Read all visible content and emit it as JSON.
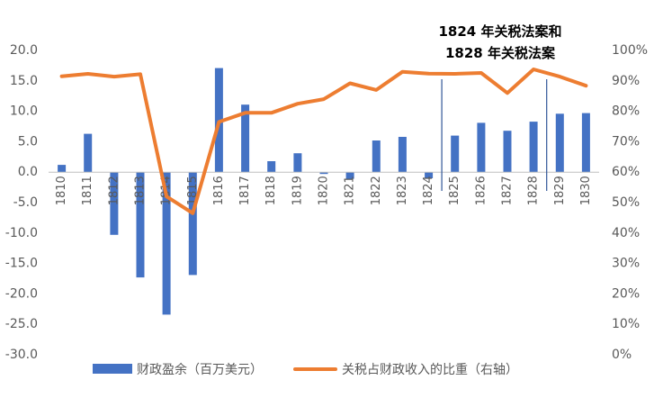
{
  "chart_data": {
    "type": "bar+line",
    "categories": [
      "1810",
      "1811",
      "1812",
      "1813",
      "1814",
      "1815",
      "1816",
      "1817",
      "1818",
      "1819",
      "1820",
      "1821",
      "1822",
      "1823",
      "1824",
      "1825",
      "1826",
      "1827",
      "1828",
      "1829",
      "1830"
    ],
    "series": [
      {
        "name": "财政盈余（百万美元）",
        "type": "bar",
        "axis": "left",
        "color": "#4472C4",
        "values": [
          1.2,
          6.3,
          -10.3,
          -17.3,
          -23.4,
          -16.9,
          17.1,
          11.1,
          1.8,
          3.1,
          -0.3,
          -1.1,
          5.2,
          5.8,
          -1.0,
          6.0,
          8.1,
          6.8,
          8.3,
          9.6,
          9.7
        ]
      },
      {
        "name": "关税占财政收入的比重（右轴）",
        "type": "line",
        "axis": "right",
        "color": "#ED7D31",
        "values": [
          91.5,
          92.3,
          91.4,
          92.2,
          52.0,
          46.5,
          76.5,
          79.5,
          79.5,
          82.5,
          84.0,
          89.2,
          87.0,
          93.0,
          92.4,
          92.3,
          92.6,
          86.0,
          93.8,
          91.4,
          88.4
        ]
      }
    ],
    "y_left": {
      "min": -30,
      "max": 20,
      "step": 5,
      "tick_labels": [
        "20.0",
        "15.0",
        "10.0",
        "5.0",
        "0.0",
        "-5.0",
        "-10.0",
        "-15.0",
        "-20.0",
        "-25.0",
        "-30.0"
      ]
    },
    "y_right": {
      "min": 0,
      "max": 100,
      "step": 10,
      "tick_labels": [
        "100%",
        "90%",
        "80%",
        "70%",
        "60%",
        "50%",
        "40%",
        "30%",
        "20%",
        "10%",
        "0%"
      ]
    },
    "annotations": {
      "lines": [
        "1824 年关税法案和",
        "1828 年关税法案"
      ],
      "markers": [
        "1824",
        "1828"
      ]
    },
    "legend": {
      "position": "bottom",
      "items": [
        "财政盈余（百万美元）",
        "关税占财政收入的比重（右轴）"
      ]
    },
    "grid": false
  }
}
